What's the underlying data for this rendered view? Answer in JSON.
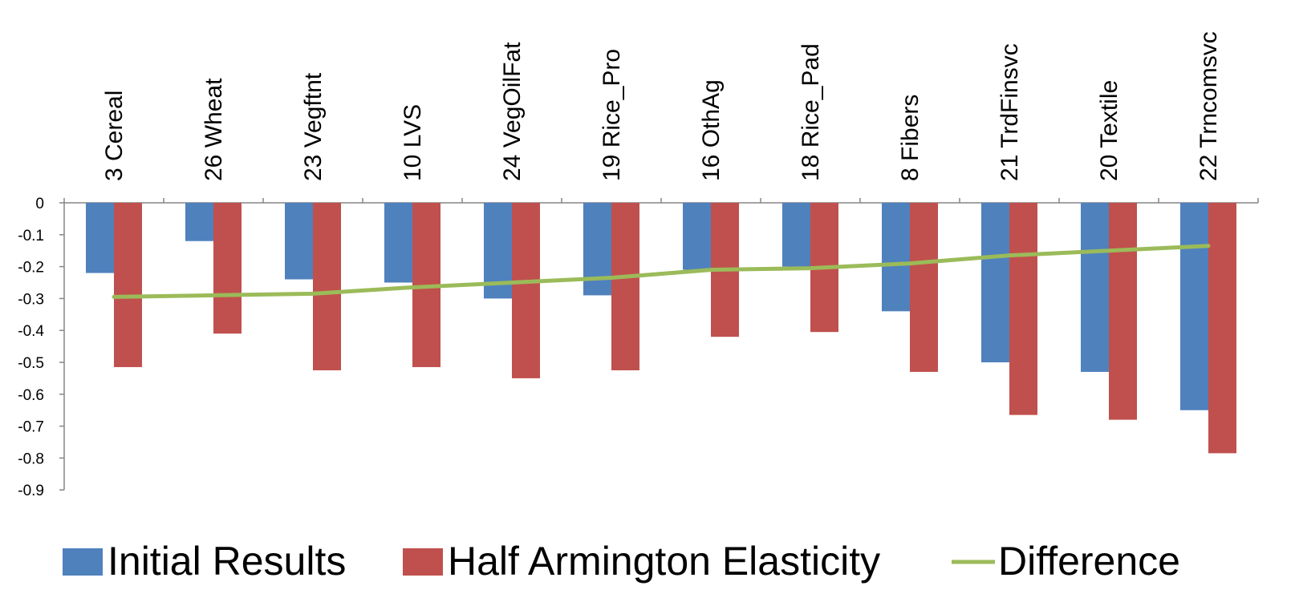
{
  "chart_data": {
    "type": "bar",
    "categories": [
      "3 Cereal",
      "26 Wheat",
      "23 Vegftnt",
      "10 LVS",
      "24 VegOilFat",
      "19 Rice_Pro",
      "16 OthAg",
      "18 Rice_Pad",
      "8 Fibers",
      "21 TrdFinsvc",
      "20 Textile",
      "22 Trncomsvc"
    ],
    "series": [
      {
        "name": "Initial Results",
        "kind": "bar",
        "color": "#4f81bd",
        "values": [
          -0.22,
          -0.12,
          -0.24,
          -0.25,
          -0.3,
          -0.29,
          -0.21,
          -0.2,
          -0.34,
          -0.5,
          -0.53,
          -0.65
        ]
      },
      {
        "name": "Half Armington Elasticity",
        "kind": "bar",
        "color": "#c0504d",
        "values": [
          -0.515,
          -0.41,
          -0.525,
          -0.515,
          -0.55,
          -0.525,
          -0.42,
          -0.405,
          -0.53,
          -0.665,
          -0.68,
          -0.785
        ]
      },
      {
        "name": "Difference",
        "kind": "line",
        "color": "#9bbb59",
        "values": [
          -0.295,
          -0.29,
          -0.285,
          -0.265,
          -0.25,
          -0.235,
          -0.21,
          -0.205,
          -0.19,
          -0.165,
          -0.15,
          -0.135
        ]
      }
    ],
    "ylim": [
      -0.9,
      0
    ],
    "yticks": [
      "0",
      "-0.1",
      "-0.2",
      "-0.3",
      "-0.4",
      "-0.5",
      "-0.6",
      "-0.7",
      "-0.8",
      "-0.9"
    ],
    "title": "",
    "xlabel": "",
    "ylabel": "",
    "grid": false,
    "legend_position": "bottom"
  }
}
